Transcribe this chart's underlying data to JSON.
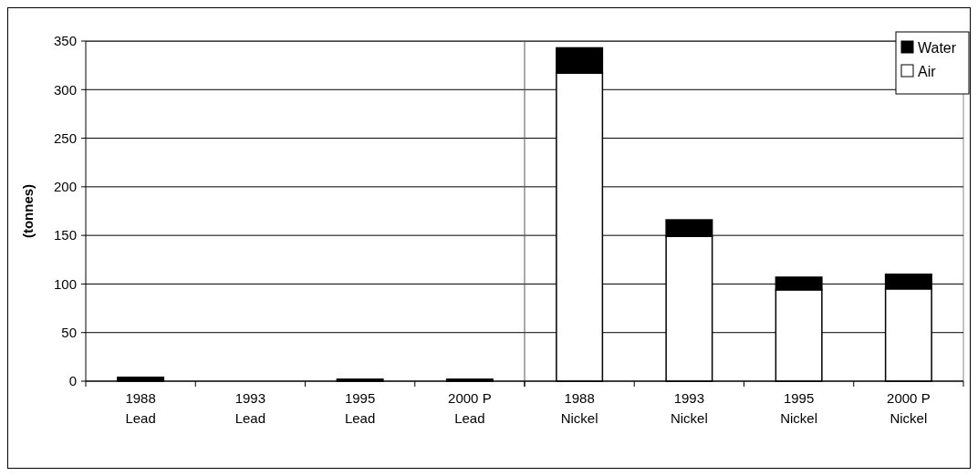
{
  "chart_data": [
    {
      "type": "bar",
      "ylabel": "(tonnes)",
      "stacked": true,
      "categories": [
        "1988 Lead",
        "1993 Lead",
        "1995 Lead",
        "2000 P Lead"
      ],
      "series": [
        {
          "color": "#ffffff",
          "values": [
            0,
            0,
            0,
            0
          ]
        },
        {
          "color": "#000000",
          "values": [
            4,
            0,
            2,
            2
          ]
        }
      ],
      "ylim": [
        0,
        350
      ],
      "yticks": [
        0,
        50,
        100,
        150,
        200,
        250,
        300,
        350
      ],
      "grid": "y"
    },
    {
      "type": "bar",
      "stacked": true,
      "categories": [
        "1988 Nickel",
        "1993 Nickel",
        "1995 Nickel",
        "2000 P Nickel"
      ],
      "series": [
        {
          "name": "Air",
          "color": "#ffffff",
          "values": [
            317,
            149,
            94,
            95
          ]
        },
        {
          "name": "Water",
          "color": "#000000",
          "values": [
            26,
            17,
            13,
            15
          ]
        }
      ],
      "ylim": [
        0,
        350
      ],
      "yticks": [
        0,
        50,
        100,
        150,
        200,
        250,
        300,
        350
      ],
      "grid": "y",
      "legend": "top right",
      "tick_labels": "x"
    }
  ]
}
